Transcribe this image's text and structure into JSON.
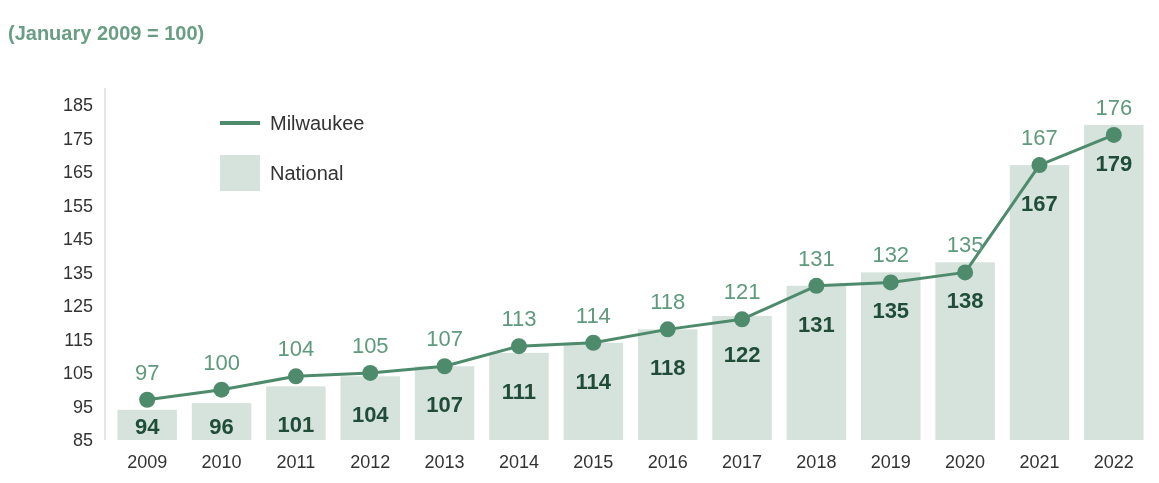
{
  "chart_data": {
    "type": "bar",
    "title": "(January 2009 = 100)",
    "categories": [
      "2009",
      "2010",
      "2011",
      "2012",
      "2013",
      "2014",
      "2015",
      "2016",
      "2017",
      "2018",
      "2019",
      "2020",
      "2021",
      "2022"
    ],
    "series": [
      {
        "name": "National",
        "color": "#d6e2dc",
        "values": [
          94,
          96,
          101,
          104,
          107,
          111,
          114,
          118,
          122,
          131,
          135,
          138,
          167,
          179
        ]
      },
      {
        "name": "Milwaukee",
        "type": "line",
        "color": "#4e8a6c",
        "values": [
          97,
          100,
          104,
          105,
          107,
          113,
          114,
          118,
          121,
          131,
          132,
          135,
          167,
          176
        ]
      }
    ],
    "ylim": [
      85,
      190
    ],
    "yticks": [
      85,
      95,
      105,
      115,
      125,
      135,
      145,
      155,
      165,
      175,
      185
    ],
    "data_labels": true,
    "legend": "top left",
    "marker": "circle",
    "grid": false
  }
}
